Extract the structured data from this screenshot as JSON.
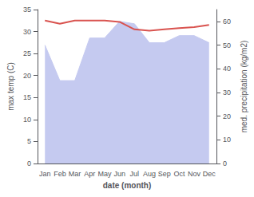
{
  "chart_data": {
    "type": "line",
    "categories": [
      "Jan",
      "Feb",
      "Mar",
      "Apr",
      "May",
      "Jun",
      "Jul",
      "Aug",
      "Sep",
      "Oct",
      "Nov",
      "Dec"
    ],
    "series": [
      {
        "type": "area",
        "color": "#c5caf0",
        "axis": "y2",
        "values": [
          50,
          35,
          35,
          53,
          53,
          60,
          59,
          51,
          51,
          54,
          54,
          51
        ]
      },
      {
        "type": "line",
        "color": "#d9534f",
        "values": [
          32.5,
          31.8,
          32.5,
          32.5,
          32.5,
          32.2,
          30.5,
          30.2,
          30.5,
          30.8,
          31.0,
          31.5
        ]
      }
    ],
    "xlabel": "date (month)",
    "ylabel": "max temp (C)",
    "y2label": "med. precipitation (kg/m2)",
    "ylim": [
      0,
      35
    ],
    "yticks": [
      0,
      5,
      10,
      15,
      20,
      25,
      30,
      35
    ],
    "y2lim": [
      0,
      65
    ],
    "y2ticks": [
      0,
      10,
      20,
      30,
      40,
      50,
      60
    ],
    "grid": false
  }
}
